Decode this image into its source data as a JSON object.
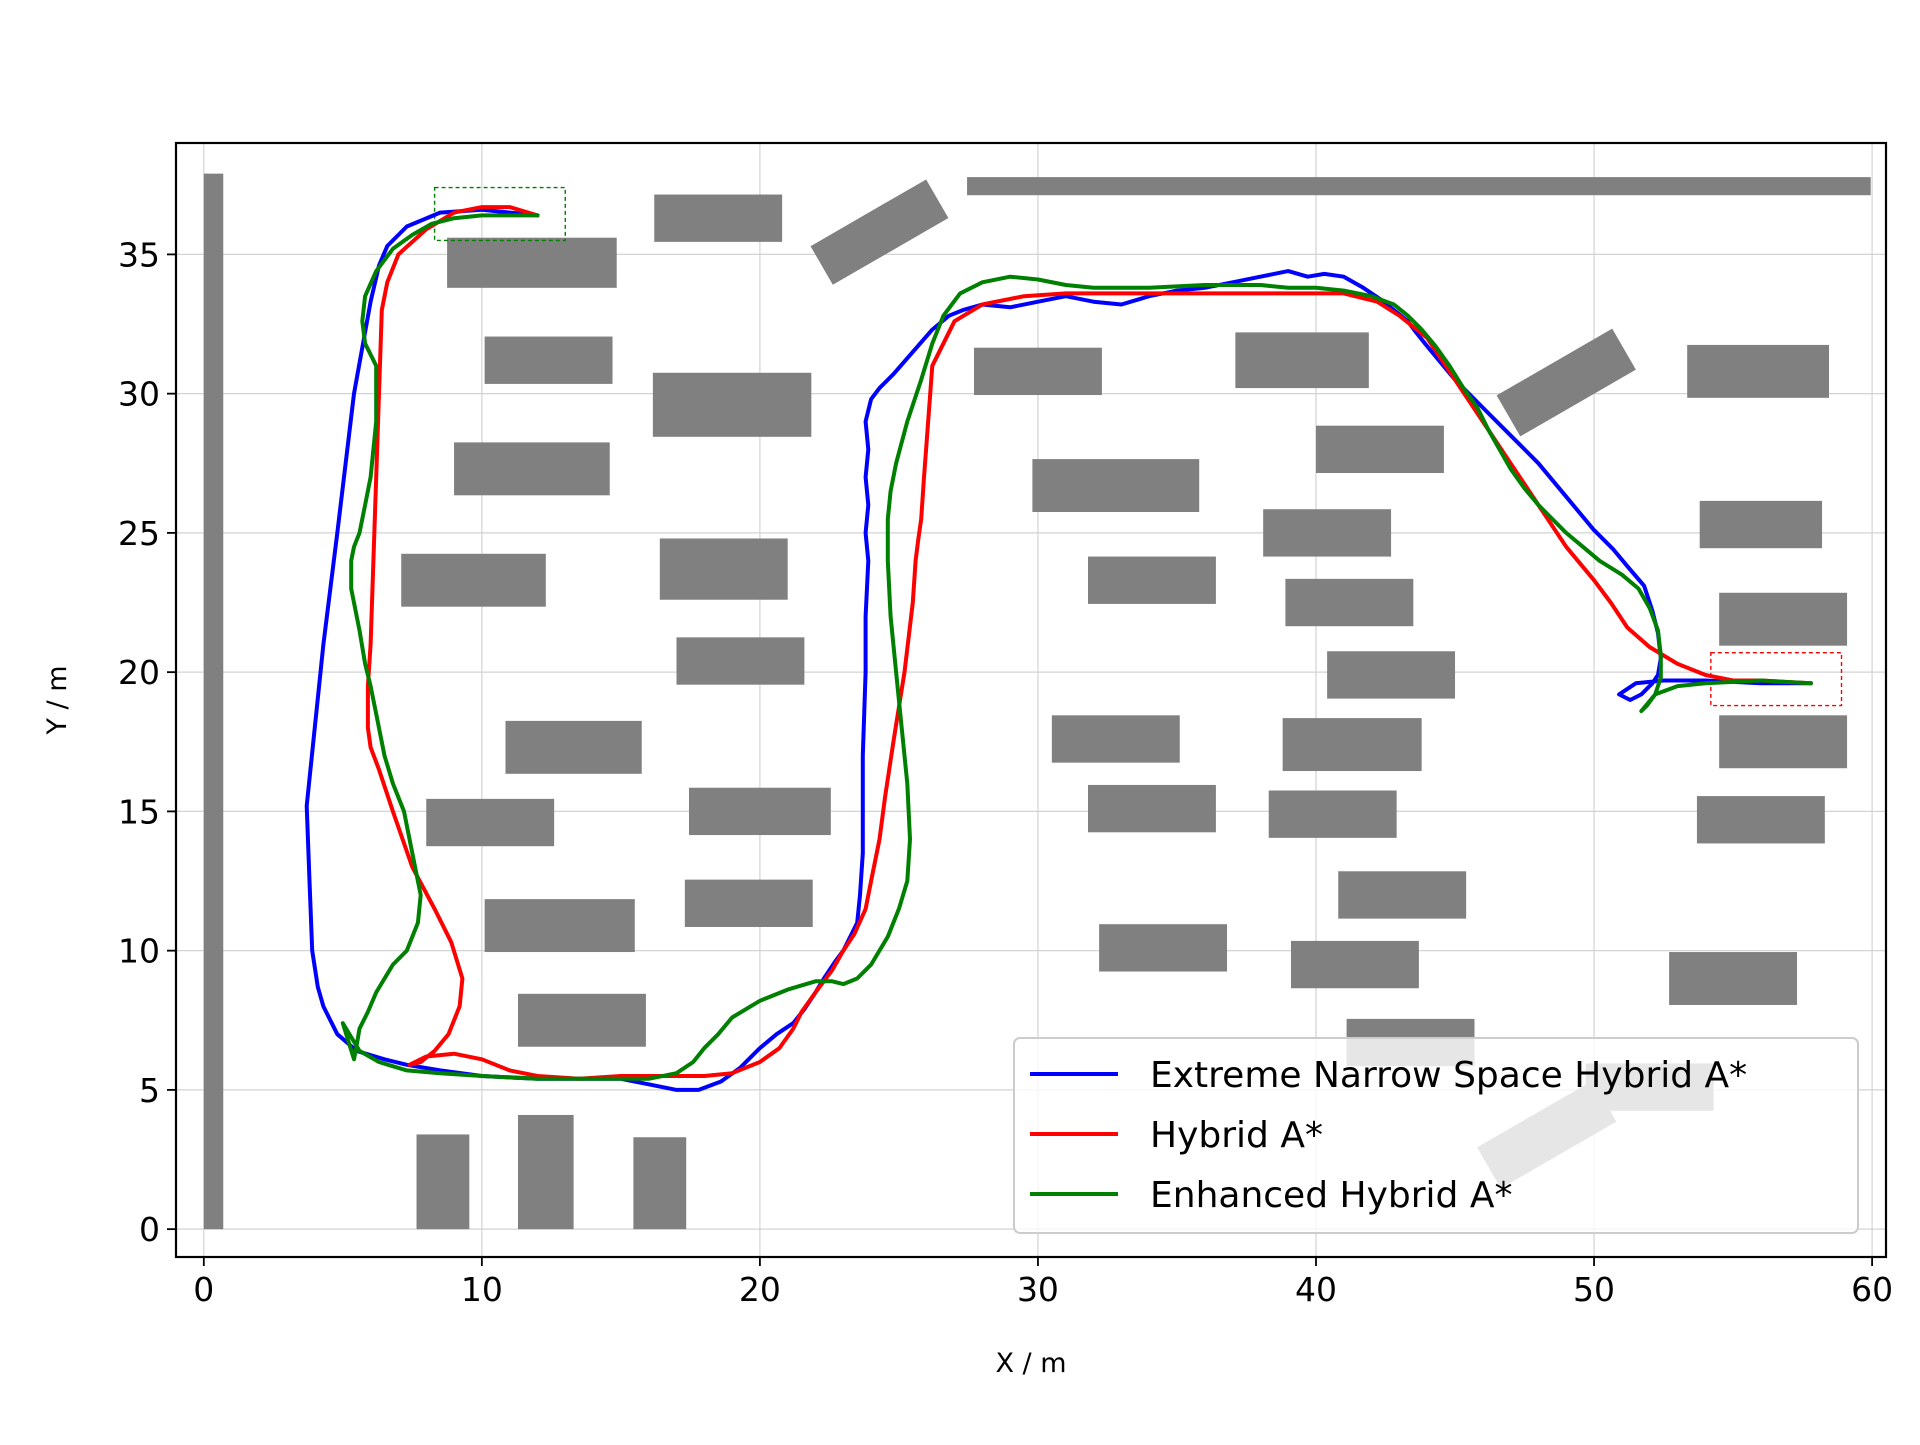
{
  "chart_data": {
    "type": "line",
    "title": "",
    "xlabel": "X / m",
    "ylabel": "Y / m",
    "xlim": [
      -1,
      60.5
    ],
    "ylim": [
      -1,
      39
    ],
    "xticks": [
      0,
      10,
      20,
      30,
      40,
      50,
      60
    ],
    "yticks": [
      0,
      5,
      10,
      15,
      20,
      25,
      30,
      35
    ],
    "grid": true,
    "legend_position": "bottom-right",
    "colors": {
      "obstacle": "#808080",
      "grid": "#d3d3d3",
      "start_box": "#008000",
      "goal_box": "#ff0000"
    },
    "obstacles": [
      {
        "cx": 0.35,
        "cy": 18.95,
        "w": 0.7,
        "h": 37.9,
        "angle": 0
      },
      {
        "cx": 43.7,
        "cy": 37.45,
        "w": 32.5,
        "h": 0.65,
        "angle": 0
      },
      {
        "cx": 18.5,
        "cy": 36.3,
        "w": 4.6,
        "h": 1.7,
        "angle": 0
      },
      {
        "cx": 24.3,
        "cy": 35.8,
        "w": 4.8,
        "h": 1.6,
        "angle": -30
      },
      {
        "cx": 11.8,
        "cy": 34.7,
        "w": 6.1,
        "h": 1.8,
        "angle": 0
      },
      {
        "cx": 12.4,
        "cy": 31.2,
        "w": 4.6,
        "h": 1.7,
        "angle": 0
      },
      {
        "cx": 19.0,
        "cy": 29.6,
        "w": 5.7,
        "h": 2.3,
        "angle": 0
      },
      {
        "cx": 11.8,
        "cy": 27.3,
        "w": 5.6,
        "h": 1.9,
        "angle": 0
      },
      {
        "cx": 9.7,
        "cy": 23.3,
        "w": 5.2,
        "h": 1.9,
        "angle": 0
      },
      {
        "cx": 18.7,
        "cy": 23.7,
        "w": 4.6,
        "h": 2.2,
        "angle": 0
      },
      {
        "cx": 19.3,
        "cy": 20.4,
        "w": 4.6,
        "h": 1.7,
        "angle": 0
      },
      {
        "cx": 13.3,
        "cy": 17.3,
        "w": 4.9,
        "h": 1.9,
        "angle": 0
      },
      {
        "cx": 10.3,
        "cy": 14.6,
        "w": 4.6,
        "h": 1.7,
        "angle": 0
      },
      {
        "cx": 20.0,
        "cy": 15.0,
        "w": 5.1,
        "h": 1.7,
        "angle": 0
      },
      {
        "cx": 19.6,
        "cy": 11.7,
        "w": 4.6,
        "h": 1.7,
        "angle": 0
      },
      {
        "cx": 12.8,
        "cy": 10.9,
        "w": 5.4,
        "h": 1.9,
        "angle": 0
      },
      {
        "cx": 13.6,
        "cy": 7.5,
        "w": 4.6,
        "h": 1.9,
        "angle": 0
      },
      {
        "cx": 8.6,
        "cy": 1.7,
        "w": 1.9,
        "h": 3.4,
        "angle": 0
      },
      {
        "cx": 12.3,
        "cy": 2.05,
        "w": 2.0,
        "h": 4.1,
        "angle": 0
      },
      {
        "cx": 16.4,
        "cy": 1.65,
        "w": 1.9,
        "h": 3.3,
        "angle": 0
      },
      {
        "cx": 30.0,
        "cy": 30.8,
        "w": 4.6,
        "h": 1.7,
        "angle": 0
      },
      {
        "cx": 32.8,
        "cy": 26.7,
        "w": 6.0,
        "h": 1.9,
        "angle": 0
      },
      {
        "cx": 34.1,
        "cy": 23.3,
        "w": 4.6,
        "h": 1.7,
        "angle": 0
      },
      {
        "cx": 32.8,
        "cy": 17.6,
        "w": 4.6,
        "h": 1.7,
        "angle": 0
      },
      {
        "cx": 34.1,
        "cy": 15.1,
        "w": 4.6,
        "h": 1.7,
        "angle": 0
      },
      {
        "cx": 34.5,
        "cy": 10.1,
        "w": 4.6,
        "h": 1.7,
        "angle": 0
      },
      {
        "cx": 39.5,
        "cy": 31.2,
        "w": 4.8,
        "h": 2.0,
        "angle": 0
      },
      {
        "cx": 42.3,
        "cy": 28.0,
        "w": 4.6,
        "h": 1.7,
        "angle": 0
      },
      {
        "cx": 40.4,
        "cy": 25.0,
        "w": 4.6,
        "h": 1.7,
        "angle": 0
      },
      {
        "cx": 41.2,
        "cy": 22.5,
        "w": 4.6,
        "h": 1.7,
        "angle": 0
      },
      {
        "cx": 42.7,
        "cy": 19.9,
        "w": 4.6,
        "h": 1.7,
        "angle": 0
      },
      {
        "cx": 41.3,
        "cy": 17.4,
        "w": 5.0,
        "h": 1.9,
        "angle": 0
      },
      {
        "cx": 40.6,
        "cy": 14.9,
        "w": 4.6,
        "h": 1.7,
        "angle": 0
      },
      {
        "cx": 43.1,
        "cy": 12.0,
        "w": 4.6,
        "h": 1.7,
        "angle": 0
      },
      {
        "cx": 41.4,
        "cy": 9.5,
        "w": 4.6,
        "h": 1.7,
        "angle": 0
      },
      {
        "cx": 43.4,
        "cy": 6.7,
        "w": 4.6,
        "h": 1.7,
        "angle": 0
      },
      {
        "cx": 52.0,
        "cy": 5.1,
        "w": 4.6,
        "h": 1.7,
        "angle": 0
      },
      {
        "cx": 48.3,
        "cy": 3.4,
        "w": 4.8,
        "h": 1.7,
        "angle": -30
      },
      {
        "cx": 49.0,
        "cy": 30.4,
        "w": 4.8,
        "h": 1.7,
        "angle": -30
      },
      {
        "cx": 55.9,
        "cy": 30.8,
        "w": 5.1,
        "h": 1.9,
        "angle": 0
      },
      {
        "cx": 56.0,
        "cy": 25.3,
        "w": 4.4,
        "h": 1.7,
        "angle": 0
      },
      {
        "cx": 56.8,
        "cy": 21.9,
        "w": 4.6,
        "h": 1.9,
        "angle": 0
      },
      {
        "cx": 56.8,
        "cy": 17.5,
        "w": 4.6,
        "h": 1.9,
        "angle": 0
      },
      {
        "cx": 56.0,
        "cy": 14.7,
        "w": 4.6,
        "h": 1.7,
        "angle": 0
      },
      {
        "cx": 55.0,
        "cy": 9.0,
        "w": 4.6,
        "h": 1.9,
        "angle": 0
      }
    ],
    "start_box": {
      "x0": 8.3,
      "x1": 13.0,
      "y0": 35.5,
      "y1": 37.4
    },
    "goal_box": {
      "x0": 54.2,
      "x1": 58.9,
      "y0": 18.8,
      "y1": 20.7
    },
    "series": [
      {
        "name": "Extreme Narrow Space Hybrid A*",
        "color": "#0000ff",
        "x": [
          12.0,
          10.0,
          8.5,
          7.3,
          6.6,
          6.3,
          6.0,
          5.4,
          4.8,
          4.3,
          3.7,
          3.8,
          3.9,
          4.1,
          4.3,
          4.8,
          5.5,
          6.5,
          7.3,
          8.5,
          10.0,
          12.0,
          13.5,
          15.0,
          16.0,
          17.0,
          17.8,
          18.6,
          19.3,
          20.0,
          20.6,
          21.2,
          21.6,
          22.0,
          22.3,
          22.7,
          23.0,
          23.3,
          23.5,
          23.6,
          23.7,
          23.7,
          23.7,
          23.8,
          23.8,
          23.9,
          23.8,
          23.9,
          23.8,
          23.9,
          23.8,
          24.0,
          24.3,
          24.8,
          25.5,
          26.2,
          26.8,
          27.3,
          28.0,
          29.0,
          30.0,
          31.0,
          32.0,
          33.0,
          34.0,
          35.0,
          36.0,
          37.0,
          38.0,
          39.0,
          39.7,
          40.3,
          41.0,
          41.7,
          42.3,
          42.8,
          43.3,
          43.6,
          44.0,
          44.5,
          45.0,
          46.0,
          47.0,
          48.0,
          49.0,
          50.0,
          50.7,
          51.2,
          51.8,
          52.1,
          52.3,
          52.4,
          52.3,
          52.1,
          51.7,
          51.3,
          50.9,
          51.5,
          52.5,
          54.0,
          56.0,
          57.8
        ],
        "y": [
          36.4,
          36.6,
          36.5,
          36.0,
          35.3,
          34.6,
          33.3,
          30.0,
          25.0,
          21.0,
          15.2,
          12.5,
          10.0,
          8.7,
          8.0,
          7.0,
          6.4,
          6.1,
          5.9,
          5.7,
          5.5,
          5.4,
          5.4,
          5.4,
          5.2,
          5.0,
          5.0,
          5.3,
          5.8,
          6.5,
          7.0,
          7.4,
          7.9,
          8.5,
          9.0,
          9.6,
          10.0,
          10.6,
          11.0,
          12.0,
          13.5,
          15.0,
          17.0,
          20.0,
          22.0,
          24.0,
          25.0,
          26.0,
          27.0,
          28.0,
          29.0,
          29.8,
          30.2,
          30.7,
          31.5,
          32.3,
          32.8,
          33.0,
          33.2,
          33.1,
          33.3,
          33.5,
          33.3,
          33.2,
          33.5,
          33.7,
          33.8,
          34.0,
          34.2,
          34.4,
          34.2,
          34.3,
          34.2,
          33.8,
          33.4,
          33.0,
          32.6,
          32.2,
          31.7,
          31.1,
          30.5,
          29.5,
          28.5,
          27.5,
          26.3,
          25.1,
          24.4,
          23.8,
          23.1,
          22.2,
          21.4,
          20.5,
          19.9,
          19.6,
          19.2,
          19.0,
          19.2,
          19.6,
          19.7,
          19.7,
          19.6,
          19.6
        ]
      },
      {
        "name": "Hybrid A*",
        "color": "#ff0000",
        "x": [
          12.0,
          11.0,
          10.0,
          9.0,
          8.0,
          7.0,
          6.6,
          6.4,
          6.3,
          6.2,
          6.1,
          6.0,
          5.9,
          5.9,
          6.0,
          6.3,
          6.8,
          7.5,
          8.3,
          8.9,
          9.3,
          9.2,
          8.8,
          8.3,
          7.8,
          7.4,
          8.0,
          9.0,
          10.0,
          11.0,
          12.0,
          13.5,
          15.0,
          16.0,
          17.0,
          18.0,
          19.0,
          20.0,
          20.7,
          21.2,
          21.5,
          22.0,
          22.6,
          23.0,
          23.4,
          23.8,
          24.0,
          24.3,
          24.5,
          24.8,
          25.2,
          25.5,
          25.6,
          25.7,
          25.8,
          25.9,
          26.2,
          27.0,
          28.0,
          29.5,
          31.0,
          33.0,
          35.0,
          37.0,
          39.0,
          41.0,
          42.2,
          43.0,
          44.0,
          45.0,
          46.0,
          47.0,
          48.0,
          49.0,
          50.0,
          50.6,
          51.2,
          52.0,
          53.0,
          54.0,
          55.0,
          56.0,
          57.8
        ],
        "y": [
          36.4,
          36.7,
          36.7,
          36.5,
          35.9,
          35.0,
          34.0,
          33.0,
          30.0,
          27.0,
          24.0,
          21.0,
          19.5,
          18.0,
          17.3,
          16.5,
          15.0,
          13.0,
          11.5,
          10.3,
          9.0,
          8.0,
          7.0,
          6.4,
          6.0,
          5.9,
          6.2,
          6.3,
          6.1,
          5.7,
          5.5,
          5.4,
          5.5,
          5.5,
          5.5,
          5.5,
          5.6,
          6.0,
          6.5,
          7.2,
          7.8,
          8.5,
          9.3,
          10.0,
          10.6,
          11.5,
          12.5,
          14.0,
          15.5,
          17.5,
          20.0,
          22.5,
          24.0,
          24.8,
          25.5,
          27.0,
          31.0,
          32.6,
          33.2,
          33.5,
          33.6,
          33.6,
          33.6,
          33.6,
          33.6,
          33.6,
          33.3,
          32.8,
          32.0,
          30.5,
          29.0,
          27.5,
          26.0,
          24.5,
          23.3,
          22.5,
          21.6,
          20.9,
          20.3,
          19.9,
          19.7,
          19.7,
          19.6
        ]
      },
      {
        "name": "Enhanced Hybrid A*",
        "color": "#008000",
        "x": [
          12.0,
          11.0,
          10.0,
          9.0,
          8.2,
          7.5,
          6.8,
          6.2,
          5.8,
          5.7,
          5.8,
          6.2,
          6.2,
          6.0,
          5.8,
          5.6,
          5.4,
          5.3,
          5.3,
          5.6,
          5.8,
          6.0,
          6.2,
          6.5,
          6.8,
          7.2,
          7.6,
          7.8,
          7.7,
          7.3,
          6.8,
          6.2,
          5.9,
          5.6,
          5.5,
          5.4,
          5.0,
          5.6,
          6.3,
          7.3,
          8.5,
          10.0,
          12.0,
          14.0,
          16.0,
          17.0,
          17.6,
          18.0,
          18.5,
          19.0,
          20.0,
          21.0,
          22.0,
          22.6,
          23.0,
          23.5,
          24.0,
          24.6,
          25.0,
          25.3,
          25.4,
          25.3,
          25.1,
          24.9,
          24.7,
          24.6,
          24.6,
          24.7,
          24.9,
          25.3,
          25.8,
          26.2,
          26.6,
          27.2,
          28.0,
          29.0,
          30.0,
          31.0,
          32.0,
          34.0,
          36.0,
          37.0,
          38.0,
          39.0,
          40.0,
          41.0,
          42.0,
          42.8,
          43.3,
          43.8,
          44.3,
          44.8,
          45.3,
          45.8,
          46.2,
          46.6,
          47.0,
          47.5,
          48.0,
          48.5,
          49.0,
          49.6,
          50.2,
          51.0,
          51.6,
          52.0,
          52.3,
          52.4,
          52.4,
          52.2,
          51.9,
          51.7,
          52.2,
          53.0,
          54.0,
          56.0,
          57.8
        ],
        "y": [
          36.4,
          36.4,
          36.4,
          36.3,
          36.1,
          35.7,
          35.2,
          34.4,
          33.5,
          32.6,
          31.8,
          31.0,
          29.0,
          27.0,
          26.0,
          25.0,
          24.5,
          24.0,
          23.0,
          21.5,
          20.3,
          19.5,
          18.5,
          17.0,
          16.0,
          15.0,
          13.0,
          12.0,
          11.0,
          10.0,
          9.5,
          8.5,
          7.8,
          7.2,
          6.6,
          6.1,
          7.4,
          6.4,
          6.0,
          5.7,
          5.6,
          5.5,
          5.4,
          5.4,
          5.4,
          5.6,
          6.0,
          6.5,
          7.0,
          7.6,
          8.2,
          8.6,
          8.9,
          8.9,
          8.8,
          9.0,
          9.5,
          10.5,
          11.5,
          12.5,
          14.0,
          16.0,
          18.0,
          20.0,
          22.0,
          24.0,
          25.5,
          26.5,
          27.5,
          29.0,
          30.5,
          31.8,
          32.8,
          33.6,
          34.0,
          34.2,
          34.1,
          33.9,
          33.8,
          33.8,
          33.9,
          33.9,
          33.9,
          33.8,
          33.8,
          33.7,
          33.5,
          33.2,
          32.8,
          32.3,
          31.7,
          31.0,
          30.2,
          29.5,
          28.7,
          28.0,
          27.3,
          26.6,
          26.0,
          25.5,
          25.0,
          24.5,
          24.0,
          23.5,
          23.0,
          22.3,
          21.5,
          20.6,
          19.8,
          19.2,
          18.8,
          18.6,
          19.2,
          19.5,
          19.6,
          19.7,
          19.6
        ]
      }
    ]
  }
}
